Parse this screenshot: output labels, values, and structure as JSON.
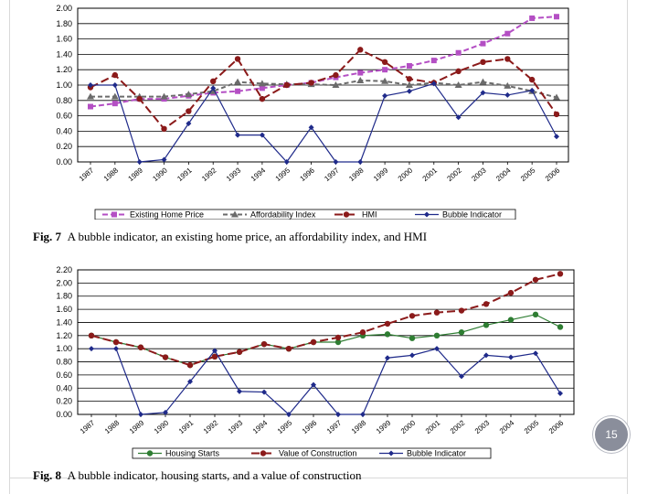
{
  "page_number": "15",
  "chart_data": [
    {
      "type": "line",
      "caption_label": "Fig. 7",
      "caption_text": "A bubble indicator, an existing home price, an affordability index, and HMI",
      "categories": [
        "1987",
        "1988",
        "1989",
        "1990",
        "1991",
        "1992",
        "1993",
        "1994",
        "1995",
        "1996",
        "1997",
        "1998",
        "1999",
        "2000",
        "2001",
        "2002",
        "2003",
        "2004",
        "2005",
        "2006"
      ],
      "yticks": [
        "0.00",
        "0.20",
        "0.40",
        "0.60",
        "0.80",
        "1.00",
        "1.20",
        "1.40",
        "1.60",
        "1.80",
        "2.00"
      ],
      "ylim": [
        0,
        2.0
      ],
      "grid": true,
      "legend_position": "bottom",
      "series": [
        {
          "name": "Existing Home Price",
          "color": "#b44fc4",
          "dash": "6,3",
          "marker": "square",
          "values": [
            0.72,
            0.76,
            0.82,
            0.82,
            0.86,
            0.9,
            0.92,
            0.96,
            1.0,
            1.03,
            1.1,
            1.16,
            1.2,
            1.25,
            1.32,
            1.42,
            1.54,
            1.67,
            1.87,
            1.89
          ]
        },
        {
          "name": "Affordability Index",
          "color": "#6b6b6b",
          "dash": "5,3",
          "marker": "triangle",
          "values": [
            0.85,
            0.85,
            0.85,
            0.85,
            0.88,
            0.92,
            1.04,
            1.02,
            1.01,
            1.01,
            1.0,
            1.06,
            1.05,
            1.0,
            1.03,
            1.0,
            1.04,
            0.99,
            0.92,
            0.84
          ]
        },
        {
          "name": "HMI",
          "color": "#8b1a1a",
          "dash": "9,4",
          "marker": "circle",
          "values": [
            0.97,
            1.13,
            0.82,
            0.43,
            0.66,
            1.05,
            1.34,
            0.82,
            1.0,
            1.03,
            1.13,
            1.46,
            1.3,
            1.08,
            1.03,
            1.18,
            1.3,
            1.34,
            1.07,
            0.62
          ]
        },
        {
          "name": "Bubble Indicator",
          "color": "#1f2a8a",
          "dash": "",
          "marker": "diamond",
          "values": [
            1.0,
            1.0,
            0.0,
            0.03,
            0.5,
            0.96,
            0.35,
            0.35,
            0.0,
            0.45,
            0.0,
            0.0,
            0.86,
            0.92,
            1.02,
            0.58,
            0.9,
            0.87,
            0.93,
            0.33
          ]
        }
      ]
    },
    {
      "type": "line",
      "caption_label": "Fig. 8",
      "caption_text": "A bubble indicator, housing starts, and a value of construction",
      "categories": [
        "1987",
        "1988",
        "1989",
        "1990",
        "1991",
        "1992",
        "1993",
        "1994",
        "1995",
        "1996",
        "1997",
        "1998",
        "1999",
        "2000",
        "2001",
        "2002",
        "2003",
        "2004",
        "2005",
        "2006"
      ],
      "yticks": [
        "0.00",
        "0.20",
        "0.40",
        "0.60",
        "0.80",
        "1.00",
        "1.20",
        "1.40",
        "1.60",
        "1.80",
        "2.00",
        "2.20"
      ],
      "ylim": [
        0,
        2.2
      ],
      "grid": true,
      "legend_position": "bottom",
      "series": [
        {
          "name": "Housing Starts",
          "color": "#2e7d32",
          "dash": "",
          "marker": "circle",
          "values": [
            1.2,
            1.1,
            1.02,
            0.87,
            0.75,
            0.88,
            0.95,
            1.07,
            1.0,
            1.1,
            1.1,
            1.2,
            1.22,
            1.16,
            1.2,
            1.25,
            1.36,
            1.44,
            1.52,
            1.33
          ]
        },
        {
          "name": "Value of Construction",
          "color": "#8b1a1a",
          "dash": "9,4",
          "marker": "circle",
          "values": [
            1.2,
            1.1,
            1.02,
            0.87,
            0.75,
            0.88,
            0.95,
            1.07,
            1.0,
            1.1,
            1.17,
            1.25,
            1.38,
            1.5,
            1.55,
            1.58,
            1.68,
            1.85,
            2.05,
            2.14
          ]
        },
        {
          "name": "Bubble Indicator",
          "color": "#1f2a8a",
          "dash": "",
          "marker": "diamond",
          "values": [
            1.0,
            1.0,
            0.0,
            0.03,
            0.5,
            0.97,
            0.35,
            0.34,
            0.0,
            0.45,
            0.0,
            0.0,
            0.86,
            0.9,
            1.0,
            0.58,
            0.9,
            0.87,
            0.93,
            0.32
          ]
        }
      ]
    }
  ]
}
